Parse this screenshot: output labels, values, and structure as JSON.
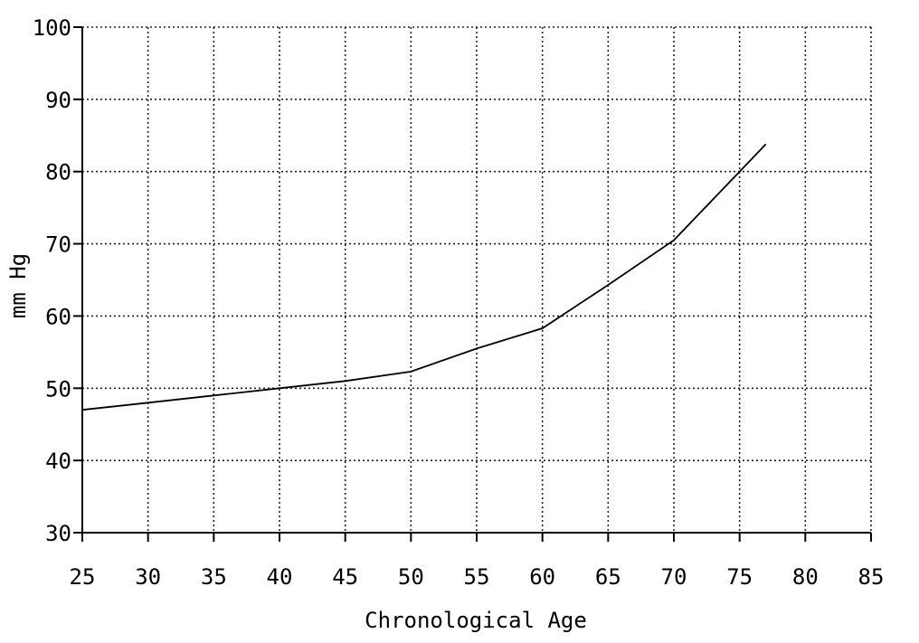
{
  "chart_data": {
    "type": "line",
    "title": "",
    "xlabel": "Chronological Age",
    "ylabel": "mm Hg",
    "xlim": [
      25,
      85
    ],
    "ylim": [
      30,
      100
    ],
    "x_ticks": [
      25,
      30,
      35,
      40,
      45,
      50,
      55,
      60,
      65,
      70,
      75,
      80,
      85
    ],
    "y_ticks": [
      30,
      40,
      50,
      60,
      70,
      80,
      90,
      100
    ],
    "grid": true,
    "legend": "none",
    "series": [
      {
        "x": [
          25,
          30,
          35,
          40,
          45,
          50,
          55,
          60,
          65,
          70,
          75,
          77
        ],
        "y": [
          47,
          48,
          49,
          50,
          51,
          52.3,
          55.5,
          58.3,
          64.3,
          70.5,
          80,
          83.8
        ]
      }
    ],
    "colors": {
      "line": "#000000",
      "grid": "#222222"
    }
  }
}
